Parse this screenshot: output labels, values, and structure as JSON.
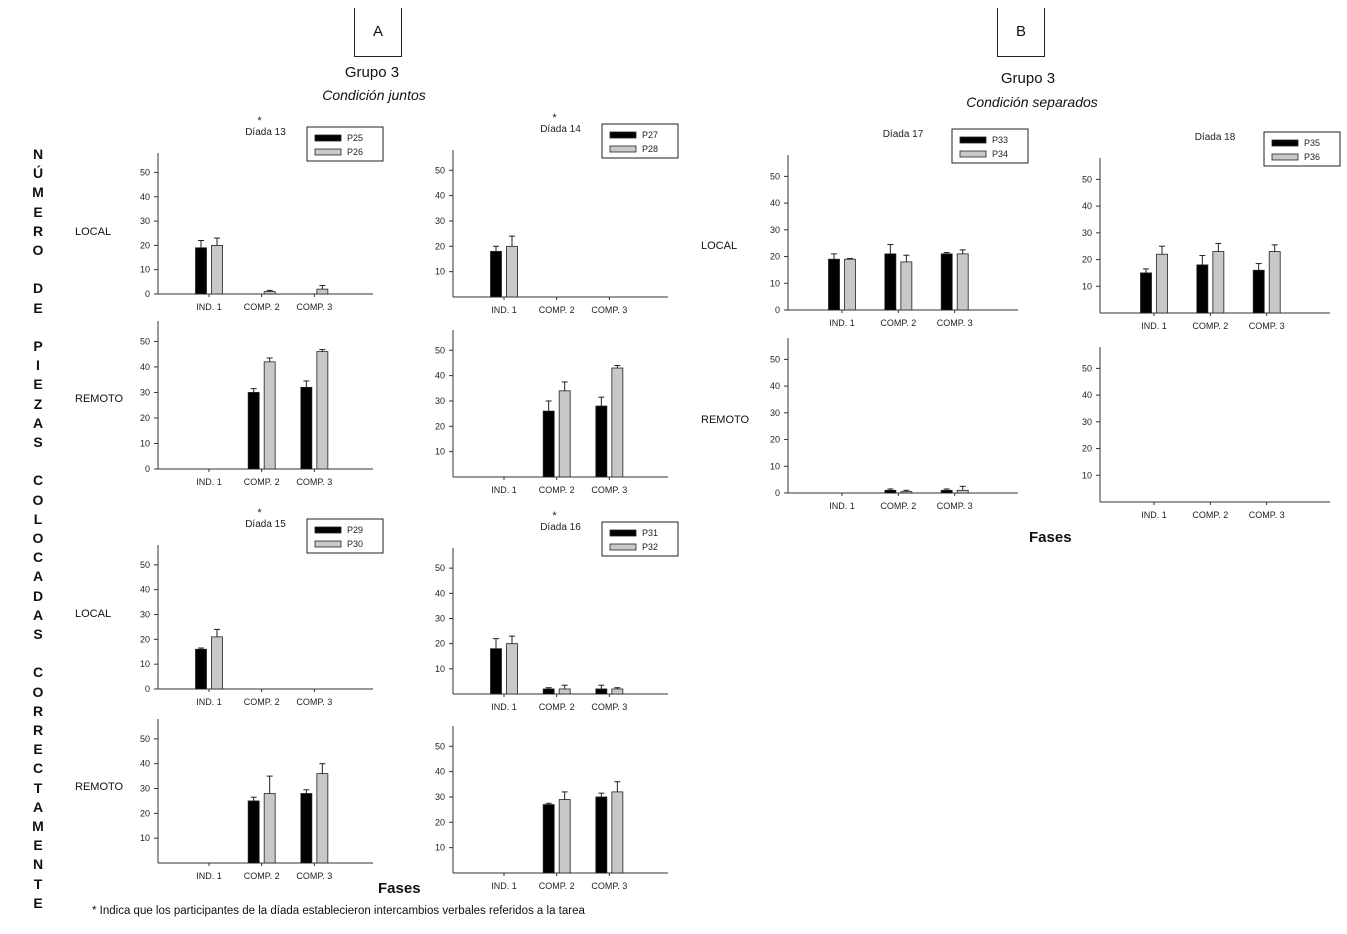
{
  "panels": {
    "a": {
      "box_label": "A",
      "group": "Grupo 3",
      "condition": "Condición juntos"
    },
    "b": {
      "box_label": "B",
      "group": "Grupo 3",
      "condition": "Condición separados"
    }
  },
  "y_axis_label_letters": [
    "N",
    "Ú",
    "M",
    "E",
    "R",
    "O",
    "",
    "D",
    "E",
    "",
    "P",
    "I",
    "E",
    "Z",
    "A",
    "S",
    "",
    "C",
    "O",
    "L",
    "O",
    "C",
    "A",
    "D",
    "A",
    "S",
    "",
    "C",
    "O",
    "R",
    "R",
    "E",
    "C",
    "T",
    "A",
    "M",
    "E",
    "N",
    "T",
    "E"
  ],
  "row_labels": {
    "local": "LOCAL",
    "remoto": "REMOTO"
  },
  "x_axis_title": "Fases",
  "footnote": "* Indica que los participantes de la díada establecieron intercambios verbales referidos a la tarea",
  "colors": {
    "participant_1": "#000000",
    "participant_2": "#c8c8c8"
  },
  "chart_data": [
    {
      "id": "d13-local",
      "type": "bar",
      "title": "Díada 13",
      "star": "*",
      "row": "LOCAL",
      "categories": [
        "IND. 1",
        "COMP. 2",
        "COMP. 3"
      ],
      "yticks": [
        0,
        10,
        20,
        30,
        40,
        50
      ],
      "ylim": [
        0,
        58
      ],
      "legend": [
        "P25",
        "P26"
      ],
      "series": [
        {
          "name": "P25",
          "values": [
            19,
            null,
            null
          ],
          "err": [
            3,
            0,
            0
          ]
        },
        {
          "name": "P26",
          "values": [
            20,
            1,
            2
          ],
          "err": [
            3,
            0.5,
            1.5
          ]
        }
      ]
    },
    {
      "id": "d13-remoto",
      "type": "bar",
      "row": "REMOTO",
      "categories": [
        "IND. 1",
        "COMP. 2",
        "COMP. 3"
      ],
      "yticks": [
        0,
        10,
        20,
        30,
        40,
        50
      ],
      "ylim": [
        0,
        58
      ],
      "series": [
        {
          "name": "P25",
          "values": [
            null,
            30,
            32
          ],
          "err": [
            0,
            1.5,
            2.5
          ]
        },
        {
          "name": "P26",
          "values": [
            null,
            42,
            46
          ],
          "err": [
            0,
            1.5,
            0.8
          ]
        }
      ]
    },
    {
      "id": "d14-local",
      "type": "bar",
      "title": "Díada 14",
      "star": "*",
      "row": "LOCAL",
      "categories": [
        "IND. 1",
        "COMP. 2",
        "COMP. 3"
      ],
      "yticks": [
        10,
        20,
        30,
        40,
        50
      ],
      "ylim": [
        0,
        58
      ],
      "legend": [
        "P27",
        "P28"
      ],
      "series": [
        {
          "name": "P27",
          "values": [
            18,
            null,
            null
          ],
          "err": [
            2,
            0,
            0
          ]
        },
        {
          "name": "P28",
          "values": [
            20,
            null,
            null
          ],
          "err": [
            4,
            0,
            0
          ]
        }
      ]
    },
    {
      "id": "d14-remoto",
      "type": "bar",
      "row": "REMOTO",
      "categories": [
        "IND. 1",
        "COMP. 2",
        "COMP. 3"
      ],
      "yticks": [
        10,
        20,
        30,
        40,
        50
      ],
      "ylim": [
        0,
        58
      ],
      "series": [
        {
          "name": "P27",
          "values": [
            null,
            26,
            28
          ],
          "err": [
            0,
            4,
            3.5
          ]
        },
        {
          "name": "P28",
          "values": [
            null,
            34,
            43
          ],
          "err": [
            0,
            3.5,
            1
          ]
        }
      ]
    },
    {
      "id": "d15-local",
      "type": "bar",
      "title": "Díada 15",
      "star": "*",
      "row": "LOCAL",
      "categories": [
        "IND. 1",
        "COMP. 2",
        "COMP. 3"
      ],
      "yticks": [
        0,
        10,
        20,
        30,
        40,
        50
      ],
      "ylim": [
        0,
        58
      ],
      "legend": [
        "P29",
        "P30"
      ],
      "series": [
        {
          "name": "P29",
          "values": [
            16,
            null,
            null
          ],
          "err": [
            0.5,
            0,
            0
          ]
        },
        {
          "name": "P30",
          "values": [
            21,
            null,
            null
          ],
          "err": [
            3,
            0,
            0
          ]
        }
      ]
    },
    {
      "id": "d15-remoto",
      "type": "bar",
      "row": "REMOTO",
      "categories": [
        "IND. 1",
        "COMP. 2",
        "COMP. 3"
      ],
      "yticks": [
        10,
        20,
        30,
        40,
        50
      ],
      "ylim": [
        0,
        58
      ],
      "series": [
        {
          "name": "P29",
          "values": [
            null,
            25,
            28
          ],
          "err": [
            0,
            1.5,
            1.5
          ]
        },
        {
          "name": "P30",
          "values": [
            null,
            28,
            36
          ],
          "err": [
            0,
            7,
            4
          ]
        }
      ]
    },
    {
      "id": "d16-local",
      "type": "bar",
      "title": "Díada 16",
      "star": "*",
      "row": "LOCAL",
      "categories": [
        "IND. 1",
        "COMP. 2",
        "COMP. 3"
      ],
      "yticks": [
        10,
        20,
        30,
        40,
        50
      ],
      "ylim": [
        0,
        58
      ],
      "legend": [
        "P31",
        "P32"
      ],
      "series": [
        {
          "name": "P31",
          "values": [
            18,
            2,
            2
          ],
          "err": [
            4,
            0.5,
            1.5
          ]
        },
        {
          "name": "P32",
          "values": [
            20,
            2,
            2
          ],
          "err": [
            3,
            1.5,
            0.5
          ]
        }
      ]
    },
    {
      "id": "d16-remoto",
      "type": "bar",
      "row": "REMOTO",
      "categories": [
        "IND. 1",
        "COMP. 2",
        "COMP. 3"
      ],
      "yticks": [
        10,
        20,
        30,
        40,
        50
      ],
      "ylim": [
        0,
        58
      ],
      "series": [
        {
          "name": "P31",
          "values": [
            null,
            27,
            30
          ],
          "err": [
            0,
            0.5,
            1.5
          ]
        },
        {
          "name": "P32",
          "values": [
            null,
            29,
            32
          ],
          "err": [
            0,
            3,
            4
          ]
        }
      ]
    },
    {
      "id": "d17-local",
      "type": "bar",
      "title": "Díada 17",
      "row": "LOCAL",
      "categories": [
        "IND. 1",
        "COMP. 2",
        "COMP. 3"
      ],
      "yticks": [
        0,
        10,
        20,
        30,
        40,
        50
      ],
      "ylim": [
        0,
        58
      ],
      "legend": [
        "P33",
        "P34"
      ],
      "series": [
        {
          "name": "P33",
          "values": [
            19,
            21,
            21
          ],
          "err": [
            2,
            3.5,
            0.5
          ]
        },
        {
          "name": "P34",
          "values": [
            19,
            18,
            21
          ],
          "err": [
            0.3,
            2.5,
            1.5
          ]
        }
      ]
    },
    {
      "id": "d17-remoto",
      "type": "bar",
      "row": "REMOTO",
      "categories": [
        "IND. 1",
        "COMP. 2",
        "COMP. 3"
      ],
      "yticks": [
        0,
        10,
        20,
        30,
        40,
        50
      ],
      "ylim": [
        0,
        58
      ],
      "series": [
        {
          "name": "P33",
          "values": [
            null,
            1,
            1
          ],
          "err": [
            0,
            0.5,
            0.5
          ]
        },
        {
          "name": "P34",
          "values": [
            null,
            0.5,
            1
          ],
          "err": [
            0,
            0.5,
            1.5
          ]
        }
      ]
    },
    {
      "id": "d18-local",
      "type": "bar",
      "title": "Díada 18",
      "row": "LOCAL",
      "categories": [
        "IND. 1",
        "COMP. 2",
        "COMP. 3"
      ],
      "yticks": [
        10,
        20,
        30,
        40,
        50
      ],
      "ylim": [
        0,
        58
      ],
      "legend": [
        "P35",
        "P36"
      ],
      "series": [
        {
          "name": "P35",
          "values": [
            15,
            18,
            16
          ],
          "err": [
            1.5,
            3.5,
            2.5
          ]
        },
        {
          "name": "P36",
          "values": [
            22,
            23,
            23
          ],
          "err": [
            3,
            3,
            2.5
          ]
        }
      ]
    },
    {
      "id": "d18-remoto",
      "type": "bar",
      "row": "REMOTO",
      "categories": [
        "IND. 1",
        "COMP. 2",
        "COMP. 3"
      ],
      "yticks": [
        10,
        20,
        30,
        40,
        50
      ],
      "ylim": [
        0,
        58
      ],
      "series": [
        {
          "name": "P35",
          "values": [
            null,
            null,
            null
          ],
          "err": [
            0,
            0,
            0
          ]
        },
        {
          "name": "P36",
          "values": [
            null,
            null,
            null
          ],
          "err": [
            0,
            0,
            0
          ]
        }
      ]
    }
  ]
}
